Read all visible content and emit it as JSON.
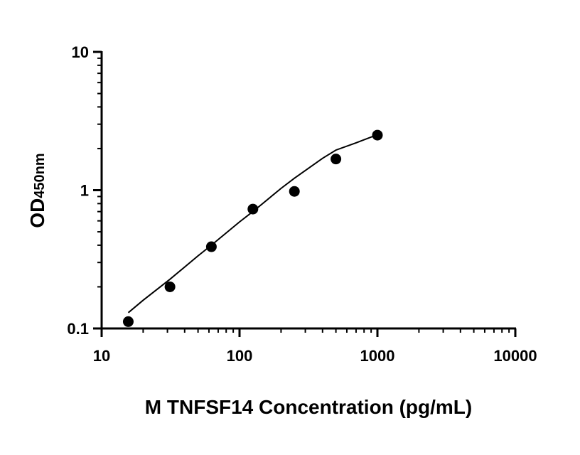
{
  "chart_data": {
    "type": "scatter",
    "title": "",
    "xlabel": "M TNFSF14 Concentration (pg/mL)",
    "ylabel": "OD",
    "ylabel_sub": "450nm",
    "x_scale": "log",
    "y_scale": "log",
    "xlim": [
      10,
      10000
    ],
    "ylim": [
      0.1,
      10
    ],
    "x_ticks": [
      10,
      100,
      1000,
      10000
    ],
    "x_tick_labels": [
      "10",
      "100",
      "1000",
      "10000"
    ],
    "y_ticks": [
      0.1,
      1,
      10
    ],
    "y_tick_labels": [
      "0.1",
      "1",
      "10"
    ],
    "grid": false,
    "series": [
      {
        "points": [
          {
            "x": 15.6,
            "y": 0.112
          },
          {
            "x": 31.3,
            "y": 0.2
          },
          {
            "x": 62.5,
            "y": 0.39
          },
          {
            "x": 125,
            "y": 0.73
          },
          {
            "x": 250,
            "y": 0.98
          },
          {
            "x": 500,
            "y": 1.68
          },
          {
            "x": 1000,
            "y": 2.5
          }
        ],
        "color": "#000000"
      }
    ],
    "fit_curve": {
      "x": [
        15.6,
        20,
        31.3,
        50,
        62.5,
        100,
        125,
        200,
        250,
        400,
        500,
        700,
        1000
      ],
      "y": [
        0.13,
        0.16,
        0.227,
        0.335,
        0.4,
        0.59,
        0.7,
        1.03,
        1.22,
        1.7,
        1.95,
        2.2,
        2.52
      ],
      "color": "#000000"
    }
  }
}
